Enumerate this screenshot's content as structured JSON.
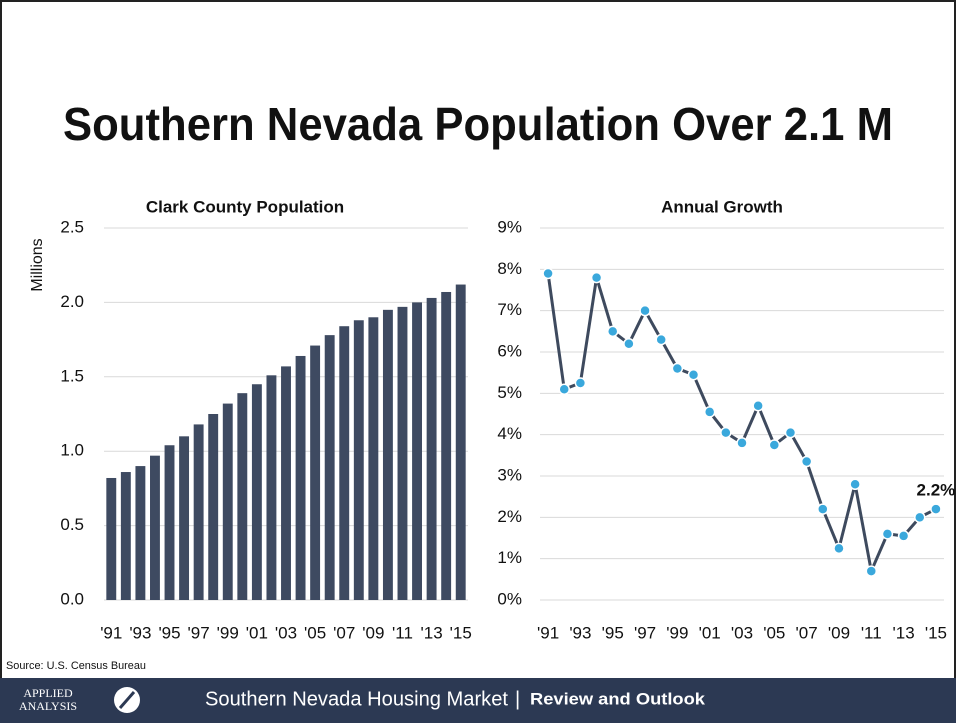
{
  "title": "Southern Nevada Population Over 2.1 M",
  "chart_data": [
    {
      "type": "bar",
      "title": "Clark County Population",
      "y_label": "Millions",
      "categories": [
        "'91",
        null,
        "'93",
        null,
        "'95",
        null,
        "'97",
        null,
        "'99",
        null,
        "'01",
        null,
        "'03",
        null,
        "'05",
        null,
        "'07",
        null,
        "'09",
        null,
        "'11",
        null,
        "'13",
        null,
        "'15"
      ],
      "x_tick_categories": null,
      "values": [
        0.82,
        0.86,
        0.9,
        0.97,
        1.04,
        1.1,
        1.18,
        1.25,
        1.32,
        1.39,
        1.45,
        1.51,
        1.57,
        1.64,
        1.71,
        1.78,
        1.84,
        1.88,
        1.9,
        1.95,
        1.97,
        2.0,
        2.03,
        2.07,
        2.12
      ],
      "color": "#3e4a61",
      "ylim": [
        0,
        2.5
      ],
      "yticks": [
        {
          "value": 0,
          "label": "0.0"
        },
        0.5,
        {
          "value": 1,
          "label": "1.0"
        },
        1.5,
        {
          "value": 2,
          "label": "2.0"
        },
        2.5
      ],
      "grid": true
    },
    {
      "type": "line",
      "title": "Annual Growth",
      "categories": [
        "'91",
        null,
        "'93",
        null,
        "'95",
        null,
        "'97",
        null,
        "'99",
        null,
        "'01",
        null,
        "'03",
        null,
        "'05",
        null,
        "'07",
        null,
        "'09",
        null,
        "'11",
        null,
        "'13",
        null,
        "'15"
      ],
      "values": [
        7.9,
        5.1,
        5.25,
        7.8,
        6.5,
        6.2,
        7.0,
        6.3,
        5.6,
        5.45,
        4.55,
        4.05,
        3.8,
        4.7,
        3.75,
        4.05,
        3.35,
        2.2,
        1.25,
        2.8,
        0.7,
        1.6,
        1.55,
        2.0,
        2.2
      ],
      "value_labels": [
        null,
        null,
        null,
        null,
        null,
        null,
        null,
        null,
        null,
        null,
        null,
        null,
        null,
        null,
        null,
        null,
        null,
        null,
        null,
        null,
        null,
        null,
        null,
        null,
        "2.2%"
      ],
      "color": "#3e4a5e",
      "marker_color": "#3aa8dc",
      "ylim": [
        0,
        9
      ],
      "yticks": [
        {
          "value": 0,
          "label": "0%"
        },
        {
          "value": 1,
          "label": "1%"
        },
        {
          "value": 2,
          "label": "2%"
        },
        {
          "value": 3,
          "label": "3%"
        },
        {
          "value": 4,
          "label": "4%"
        },
        {
          "value": 5,
          "label": "5%"
        },
        {
          "value": 6,
          "label": "6%"
        },
        {
          "value": 7,
          "label": "7%"
        },
        {
          "value": 8,
          "label": "8%"
        },
        {
          "value": 9,
          "label": "9%"
        }
      ],
      "grid": true
    }
  ],
  "source": "Source: U.S. Census Bureau",
  "footer": {
    "logo_top": "APPLIED",
    "logo_bottom": "ANALYSIS",
    "left": "Southern Nevada Housing Market",
    "separator": "|",
    "right": "Review and Outlook"
  }
}
